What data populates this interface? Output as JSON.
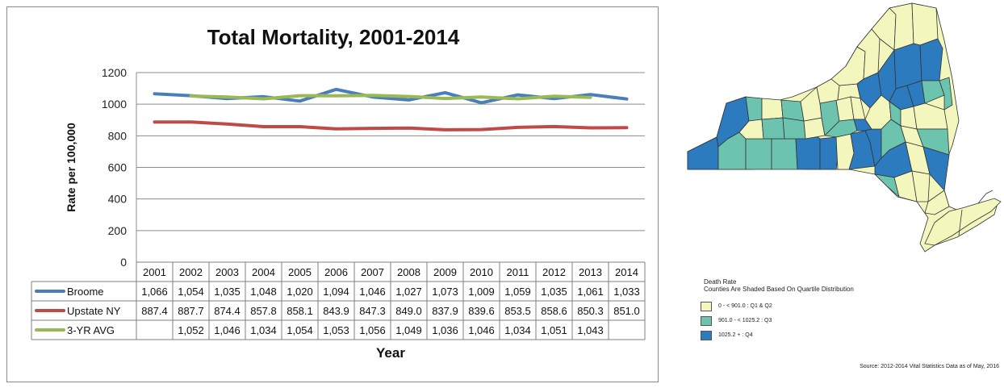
{
  "chart_data": {
    "type": "line",
    "title": "Total Mortality, 2001-2014",
    "xlabel": "Year",
    "ylabel": "Rate per 100,000",
    "ylim": [
      0,
      1200
    ],
    "yticks": [
      "0",
      "200",
      "400",
      "600",
      "800",
      "1000",
      "1200"
    ],
    "grid": true,
    "categories": [
      "2001",
      "2002",
      "2003",
      "2004",
      "2005",
      "2006",
      "2007",
      "2008",
      "2009",
      "2010",
      "2011",
      "2012",
      "2013",
      "2014"
    ],
    "series": [
      {
        "name": "Broome",
        "color": "#4a7ebb",
        "values": [
          1066,
          1054,
          1035,
          1048,
          1020,
          1094,
          1046,
          1027,
          1073,
          1009,
          1059,
          1035,
          1061,
          1033
        ],
        "labels": [
          "1,066",
          "1,054",
          "1,035",
          "1,048",
          "1,020",
          "1,094",
          "1,046",
          "1,027",
          "1,073",
          "1,009",
          "1,059",
          "1,035",
          "1,061",
          "1,033"
        ]
      },
      {
        "name": "Upstate NY",
        "color": "#be4b48",
        "values": [
          887.4,
          887.7,
          874.4,
          857.8,
          858.1,
          843.9,
          847.3,
          849.0,
          837.9,
          839.6,
          853.5,
          858.6,
          850.3,
          851.0
        ],
        "labels": [
          "887.4",
          "887.7",
          "874.4",
          "857.8",
          "858.1",
          "843.9",
          "847.3",
          "849.0",
          "837.9",
          "839.6",
          "853.5",
          "858.6",
          "850.3",
          "851.0"
        ]
      },
      {
        "name": "3-YR AVG",
        "color": "#98b954",
        "values": [
          null,
          1052,
          1046,
          1034,
          1054,
          1053,
          1056,
          1049,
          1036,
          1046,
          1034,
          1051,
          1043,
          null
        ],
        "labels": [
          "",
          "1,052",
          "1,046",
          "1,034",
          "1,054",
          "1,053",
          "1,056",
          "1,049",
          "1,036",
          "1,046",
          "1,034",
          "1,051",
          "1,043",
          ""
        ]
      }
    ]
  },
  "map": {
    "legend_title": "Death Rate",
    "legend_subtitle": "Counties Are Shaded Based On Quartile Distribution",
    "legend_items": [
      {
        "label": "0 - <  901.0  : Q1 & Q2",
        "color": "#f4f7bd"
      },
      {
        "label": "901.0 - < 1025.2  : Q3",
        "color": "#6cc3ae"
      },
      {
        "label": "1025.2 +   : Q4",
        "color": "#2c7bbe"
      }
    ],
    "source": "Source: 2012-2014 Vital Statistics Data as of May, 2016",
    "colors": {
      "q12": "#f4f7bd",
      "q3": "#6cc3ae",
      "q4": "#2c7bbe",
      "border": "#333333"
    }
  }
}
